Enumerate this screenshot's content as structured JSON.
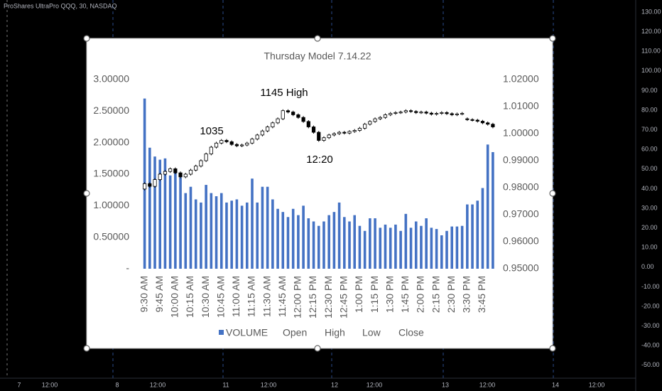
{
  "tradingview": {
    "symbol": "ProShares UltraPro QQQ, 30, NASDAQ",
    "price_axis": [
      "130.00",
      "120.00",
      "110.00",
      "100.00",
      "90.00",
      "80.00",
      "70.00",
      "60.00",
      "50.00",
      "40.00",
      "30.00",
      "20.00",
      "10.00",
      "0.00",
      "-10.00",
      "-20.00",
      "-30.00",
      "-40.00",
      "-50.00"
    ],
    "time_axis": [
      "7",
      "12:00",
      "8",
      "12:00",
      "11",
      "12:00",
      "12",
      "12:00",
      "13",
      "12:00",
      "14",
      "12:00"
    ]
  },
  "chart_data": {
    "type": "combo",
    "title": "Thursday Model 7.14.22",
    "annotations": [
      "1035",
      "1145 High",
      "12:20"
    ],
    "categories": [
      "9:30 AM",
      null,
      null,
      "9:45 AM",
      null,
      null,
      "10:00 AM",
      null,
      null,
      "10:15 AM",
      null,
      null,
      "10:30 AM",
      null,
      null,
      "10:45 AM",
      null,
      null,
      "11:00 AM",
      null,
      null,
      "11:15 AM",
      null,
      null,
      "11:30 AM",
      null,
      null,
      "11:45 AM",
      null,
      null,
      "12:00 PM",
      null,
      null,
      "12:15 PM",
      null,
      null,
      "12:30 PM",
      null,
      null,
      "12:45 PM",
      null,
      null,
      "1:00 PM",
      null,
      null,
      "1:15 PM",
      null,
      null,
      "1:30 PM",
      null,
      null,
      "1:45 PM",
      null,
      null,
      "2:00 PM",
      null,
      null,
      "2:15 PM",
      null,
      null,
      "2:30 PM",
      null,
      null,
      "3:30 PM",
      null,
      null,
      "3:45 PM",
      null,
      null
    ],
    "series": [
      {
        "name": "VOLUME",
        "color": "#4472c4",
        "values": [
          2.7,
          1.92,
          1.78,
          1.73,
          1.75,
          1.48,
          1.52,
          1.45,
          1.2,
          1.3,
          1.1,
          1.05,
          1.33,
          1.2,
          1.15,
          1.2,
          1.05,
          1.08,
          1.1,
          1.0,
          1.05,
          1.43,
          1.05,
          1.3,
          1.3,
          1.1,
          0.95,
          0.9,
          0.82,
          0.95,
          0.85,
          1.0,
          0.8,
          0.75,
          0.68,
          0.75,
          0.85,
          0.9,
          1.05,
          0.82,
          0.75,
          0.85,
          0.68,
          0.6,
          0.8,
          0.8,
          0.65,
          0.7,
          0.65,
          0.7,
          0.6,
          0.87,
          0.65,
          0.75,
          0.68,
          0.8,
          0.65,
          0.63,
          0.53,
          0.6,
          0.67,
          0.67,
          0.68,
          1.02,
          1.02,
          1.08,
          1.28,
          1.97,
          1.85
        ]
      },
      {
        "name": "Open",
        "axis": "y2",
        "values": [
          0.9795,
          0.9815,
          0.9805,
          0.983,
          0.985,
          0.986,
          0.987,
          0.9855,
          0.984,
          0.985,
          0.9865,
          0.988,
          0.99,
          0.9925,
          0.995,
          0.9965,
          0.9975,
          0.997,
          0.996,
          0.9955,
          0.9958,
          0.9965,
          0.998,
          0.9995,
          1.001,
          1.0025,
          1.004,
          1.0055,
          1.0085,
          1.008,
          1.007,
          1.006,
          1.0045,
          1.0025,
          1.0005,
          0.9975,
          0.9985,
          0.9995,
          1.0,
          1.0005,
          1.0002,
          1.0008,
          1.0012,
          1.002,
          1.0035,
          1.0045,
          1.0055,
          1.006,
          1.007,
          1.0075,
          1.0078,
          1.008,
          1.0085,
          1.0082,
          1.0078,
          1.008,
          1.0076,
          1.0072,
          1.0075,
          1.0078,
          1.0074,
          1.007,
          1.0073,
          1.0055,
          1.0052,
          1.005,
          1.0046,
          1.004,
          1.0035
        ]
      },
      {
        "name": "High",
        "axis": "y2",
        "values": [
          0.982,
          0.982,
          0.9835,
          0.9855,
          0.9865,
          0.9875,
          0.9875,
          0.986,
          0.9855,
          0.987,
          0.9885,
          0.9905,
          0.993,
          0.9955,
          0.997,
          0.998,
          0.998,
          0.9975,
          0.9965,
          0.9963,
          0.997,
          0.9985,
          1.0,
          1.0015,
          1.003,
          1.0045,
          1.006,
          1.009,
          1.009,
          1.0085,
          1.0075,
          1.0065,
          1.005,
          1.003,
          1.001,
          0.999,
          1.0,
          1.0005,
          1.001,
          1.001,
          1.0013,
          1.0017,
          1.0025,
          1.004,
          1.005,
          1.006,
          1.0065,
          1.0075,
          1.008,
          1.0083,
          1.0085,
          1.009,
          1.009,
          1.0087,
          1.0085,
          1.0085,
          1.0081,
          1.008,
          1.0083,
          1.0083,
          1.0079,
          1.0078,
          1.008,
          1.006,
          1.0057,
          1.0055,
          1.0051,
          1.0045,
          1.004
        ]
      },
      {
        "name": "Low",
        "axis": "y2",
        "values": [
          0.979,
          0.98,
          0.98,
          0.9825,
          0.9845,
          0.9855,
          0.985,
          0.9835,
          0.9835,
          0.9845,
          0.986,
          0.9875,
          0.9895,
          0.992,
          0.9945,
          0.996,
          0.9965,
          0.9955,
          0.995,
          0.995,
          0.9953,
          0.996,
          0.9975,
          0.999,
          1.0005,
          1.002,
          1.0035,
          1.005,
          1.0075,
          1.0065,
          1.0055,
          1.004,
          1.002,
          1.0,
          0.997,
          0.997,
          0.998,
          0.999,
          0.9995,
          0.9997,
          0.9997,
          1.0003,
          1.0007,
          1.0015,
          1.003,
          1.004,
          1.005,
          1.0055,
          1.0065,
          1.007,
          1.0073,
          1.0075,
          1.0077,
          1.0073,
          1.0073,
          1.0071,
          1.0067,
          1.0067,
          1.007,
          1.0069,
          1.0065,
          1.0065,
          1.0068,
          1.0047,
          1.0045,
          1.0041,
          1.0035,
          1.003,
          1.002
        ]
      },
      {
        "name": "Close",
        "axis": "y2",
        "values": [
          0.9815,
          0.9805,
          0.983,
          0.985,
          0.986,
          0.987,
          0.9855,
          0.984,
          0.985,
          0.9865,
          0.988,
          0.99,
          0.9925,
          0.995,
          0.9965,
          0.9975,
          0.997,
          0.996,
          0.9955,
          0.9958,
          0.9965,
          0.998,
          0.9995,
          1.001,
          1.0025,
          1.004,
          1.0055,
          1.0085,
          1.008,
          1.007,
          1.006,
          1.0045,
          1.0025,
          1.0005,
          0.9975,
          0.9985,
          0.9995,
          1.0,
          1.0005,
          1.0002,
          1.0008,
          1.0012,
          1.002,
          1.0035,
          1.0045,
          1.0055,
          1.006,
          1.007,
          1.0075,
          1.0078,
          1.008,
          1.0085,
          1.0082,
          1.0078,
          1.008,
          1.0076,
          1.0072,
          1.0075,
          1.0078,
          1.0074,
          1.007,
          1.0073,
          1.0075,
          1.0052,
          1.005,
          1.0046,
          1.004,
          1.0035,
          1.0025
        ]
      }
    ],
    "up_color": "#ffffff",
    "down_color": "#000000",
    "ylim": [
      0,
      3
    ],
    "yticks": [
      {
        "value": 0,
        "label": "-"
      },
      {
        "value": 0.5,
        "label": "0.50000"
      },
      {
        "value": 1,
        "label": "1.00000"
      },
      {
        "value": 1.5,
        "label": "1.50000"
      },
      {
        "value": 2,
        "label": "2.00000"
      },
      {
        "value": 2.5,
        "label": "2.50000"
      },
      {
        "value": 3,
        "label": "3.00000"
      }
    ],
    "y2lim": [
      0.95,
      1.02
    ],
    "y2ticks": [
      {
        "value": 0.95,
        "label": "0.95000"
      },
      {
        "value": 0.96,
        "label": "0.96000"
      },
      {
        "value": 0.97,
        "label": "0.97000"
      },
      {
        "value": 0.98,
        "label": "0.98000"
      },
      {
        "value": 0.99,
        "label": "0.99000"
      },
      {
        "value": 1.0,
        "label": "1.00000"
      },
      {
        "value": 1.01,
        "label": "1.01000"
      },
      {
        "value": 1.02,
        "label": "1.02000"
      }
    ],
    "grid": false,
    "legend": "bottom"
  }
}
